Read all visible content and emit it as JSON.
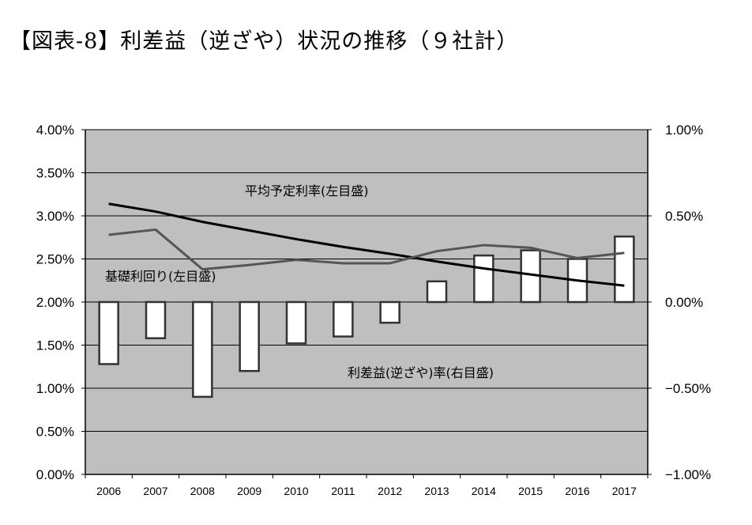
{
  "title": "【図表-8】利差益（逆ざや）状況の推移（９社計）",
  "chart_data": {
    "type": "bar+line",
    "categories": [
      "2006",
      "2007",
      "2008",
      "2009",
      "2010",
      "2011",
      "2012",
      "2013",
      "2014",
      "2015",
      "2016",
      "2017"
    ],
    "left_axis": {
      "ylim": [
        0,
        4.0
      ],
      "ticks": [
        "0.00%",
        "0.50%",
        "1.00%",
        "1.50%",
        "2.00%",
        "2.50%",
        "3.00%",
        "3.50%",
        "4.00%"
      ],
      "tick_values": [
        0,
        0.5,
        1.0,
        1.5,
        2.0,
        2.5,
        3.0,
        3.5,
        4.0
      ]
    },
    "right_axis": {
      "ylim": [
        -1.0,
        1.0
      ],
      "ticks": [
        "−1.00%",
        "−0.50%",
        "0.00%",
        "0.50%",
        "1.00%"
      ],
      "tick_values": [
        -1.0,
        -0.5,
        0,
        0.5,
        1.0
      ]
    },
    "series": [
      {
        "name": "平均予定利率(左目盛)",
        "axis": "left",
        "kind": "line",
        "color": "#000000",
        "values": [
          3.14,
          3.05,
          2.93,
          2.83,
          2.73,
          2.64,
          2.56,
          2.47,
          2.39,
          2.32,
          2.25,
          2.19
        ]
      },
      {
        "name": "基礎利回り(左目盛)",
        "axis": "left",
        "kind": "line",
        "color": "#555555",
        "values": [
          2.78,
          2.84,
          2.38,
          2.43,
          2.49,
          2.45,
          2.45,
          2.59,
          2.66,
          2.63,
          2.51,
          2.57
        ]
      },
      {
        "name": "利差益(逆ざや)率(右目盛)",
        "axis": "right",
        "kind": "bar",
        "color": "#ffffff",
        "values": [
          -0.36,
          -0.21,
          -0.55,
          -0.4,
          -0.24,
          -0.2,
          -0.12,
          0.12,
          0.27,
          0.3,
          0.25,
          0.38
        ]
      }
    ],
    "annotations": [
      "平均予定利率(左目盛)",
      "基礎利回り(左目盛)",
      "利差益(逆ざや)率(右目盛)"
    ],
    "plot_background": "#bfbfbf",
    "grid": true
  }
}
